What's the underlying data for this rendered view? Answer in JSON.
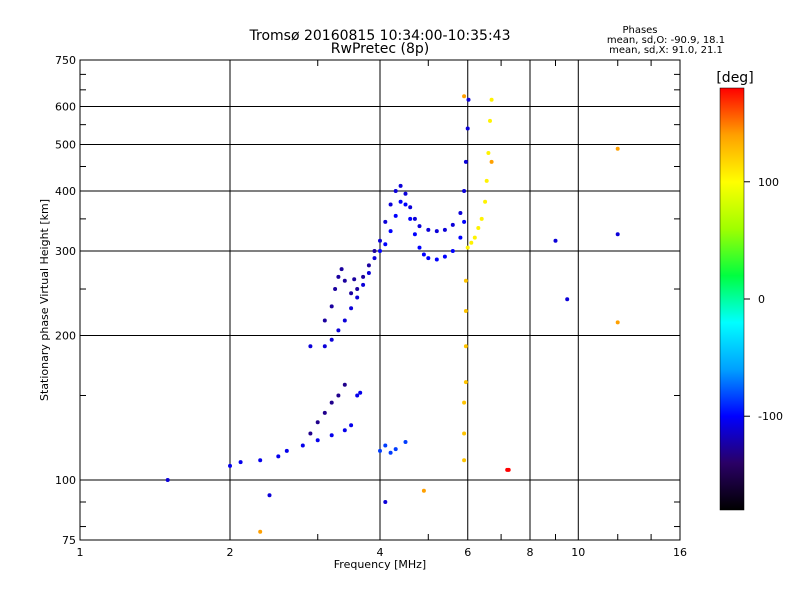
{
  "chart_data": {
    "type": "scatter",
    "title": "Tromsø 20160815 10:34:00-10:35:43",
    "subtitle": "RwPretec (8p)",
    "xlabel": "Frequency [MHz]",
    "ylabel": "Stationary phase Virtual Height [km]",
    "x_scale": "log",
    "y_scale": "log",
    "xlim": [
      1,
      16
    ],
    "ylim": [
      75,
      750
    ],
    "x_ticks": [
      1,
      2,
      4,
      6,
      8,
      10,
      16
    ],
    "y_ticks": [
      75,
      100,
      200,
      300,
      400,
      500,
      600,
      750
    ],
    "grid": true,
    "phase_info": {
      "heading": "Phases",
      "line_o": "mean, sd,O: -90.9, 18.1",
      "line_x": "mean, sd,X:  91.0, 21.1"
    },
    "colorbar": {
      "label": "[deg]",
      "ticks": [
        100,
        0,
        -100
      ],
      "range": [
        -180,
        180
      ],
      "colors": [
        "#000000",
        "#2a0066",
        "#0000ff",
        "#00a0ff",
        "#00ffff",
        "#00ff40",
        "#a0ff00",
        "#ffff00",
        "#ffa000",
        "#ff0000"
      ]
    },
    "traces": [
      {
        "name": "",
        "phase": -110,
        "points": [
          [
            3.1,
            190
          ],
          [
            3.2,
            196
          ],
          [
            3.3,
            205
          ],
          [
            3.4,
            215
          ],
          [
            3.5,
            228
          ],
          [
            3.6,
            240
          ],
          [
            3.7,
            255
          ],
          [
            3.8,
            270
          ],
          [
            3.9,
            290
          ],
          [
            4.0,
            315
          ],
          [
            4.1,
            345
          ],
          [
            4.2,
            375
          ],
          [
            4.3,
            400
          ],
          [
            4.4,
            410
          ],
          [
            4.5,
            395
          ],
          [
            4.6,
            370
          ],
          [
            4.7,
            350
          ],
          [
            4.8,
            338
          ],
          [
            5.0,
            332
          ],
          [
            5.2,
            330
          ],
          [
            5.4,
            332
          ],
          [
            5.6,
            340
          ],
          [
            5.8,
            360
          ],
          [
            5.9,
            400
          ],
          [
            5.95,
            460
          ],
          [
            6.0,
            540
          ],
          [
            6.02,
            620
          ]
        ]
      },
      {
        "name": "",
        "phase": -100,
        "points": [
          [
            4.0,
            300
          ],
          [
            4.1,
            310
          ],
          [
            4.2,
            330
          ],
          [
            4.3,
            355
          ],
          [
            4.4,
            380
          ],
          [
            4.5,
            375
          ],
          [
            4.6,
            350
          ],
          [
            4.7,
            325
          ],
          [
            4.8,
            305
          ],
          [
            4.9,
            295
          ],
          [
            5.0,
            290
          ],
          [
            5.2,
            288
          ],
          [
            5.4,
            292
          ],
          [
            5.6,
            300
          ],
          [
            5.8,
            320
          ],
          [
            5.9,
            345
          ]
        ]
      },
      {
        "name": "",
        "phase": -125,
        "points": [
          [
            3.1,
            215
          ],
          [
            3.2,
            230
          ],
          [
            3.25,
            250
          ],
          [
            3.3,
            265
          ],
          [
            3.35,
            275
          ],
          [
            3.4,
            260
          ],
          [
            3.5,
            245
          ],
          [
            3.55,
            262
          ],
          [
            3.6,
            250
          ],
          [
            3.7,
            265
          ],
          [
            3.8,
            280
          ],
          [
            3.9,
            300
          ]
        ]
      },
      {
        "name": "",
        "phase": 105,
        "points": [
          [
            6.0,
            305
          ],
          [
            6.1,
            312
          ],
          [
            6.2,
            320
          ],
          [
            6.3,
            335
          ],
          [
            6.4,
            350
          ],
          [
            6.5,
            380
          ],
          [
            6.55,
            420
          ],
          [
            6.6,
            480
          ],
          [
            6.65,
            560
          ],
          [
            6.7,
            620
          ]
        ]
      },
      {
        "name": "",
        "phase": -105,
        "points": [
          [
            2.0,
            107
          ],
          [
            2.1,
            109
          ],
          [
            2.3,
            110
          ],
          [
            2.5,
            112
          ],
          [
            2.6,
            115
          ],
          [
            2.8,
            118
          ],
          [
            3.0,
            121
          ],
          [
            3.2,
            124
          ],
          [
            3.4,
            127
          ],
          [
            3.5,
            130
          ],
          [
            3.6,
            150
          ],
          [
            3.65,
            152
          ]
        ]
      },
      {
        "name": "",
        "phase": -130,
        "points": [
          [
            2.9,
            125
          ],
          [
            3.0,
            132
          ],
          [
            3.1,
            138
          ],
          [
            3.2,
            145
          ],
          [
            3.3,
            150
          ],
          [
            3.4,
            158
          ]
        ]
      },
      {
        "name": "",
        "phase": -85,
        "points": [
          [
            4.0,
            115
          ],
          [
            4.1,
            118
          ],
          [
            4.2,
            114
          ],
          [
            4.3,
            116
          ],
          [
            4.5,
            120
          ]
        ]
      },
      {
        "name": "",
        "phase": 125,
        "points": [
          [
            5.9,
            110
          ],
          [
            5.9,
            125
          ],
          [
            5.9,
            145
          ],
          [
            5.95,
            160
          ],
          [
            5.95,
            190
          ],
          [
            5.95,
            225
          ],
          [
            5.95,
            260
          ]
        ]
      },
      {
        "name": "",
        "phase": 180,
        "points": [
          [
            7.2,
            105
          ],
          [
            7.25,
            105
          ]
        ]
      },
      {
        "name": "",
        "phase": -110,
        "points": [
          [
            9.0,
            315
          ],
          [
            12.0,
            325
          ],
          [
            9.5,
            238
          ],
          [
            1.5,
            100
          ],
          [
            2.4,
            93
          ],
          [
            4.1,
            90
          ],
          [
            2.9,
            190
          ]
        ]
      },
      {
        "name": "",
        "phase": 140,
        "points": [
          [
            12.0,
            490
          ],
          [
            12.0,
            213
          ],
          [
            2.3,
            78
          ],
          [
            4.9,
            95
          ],
          [
            5.9,
            630
          ],
          [
            6.7,
            460
          ]
        ]
      }
    ]
  }
}
